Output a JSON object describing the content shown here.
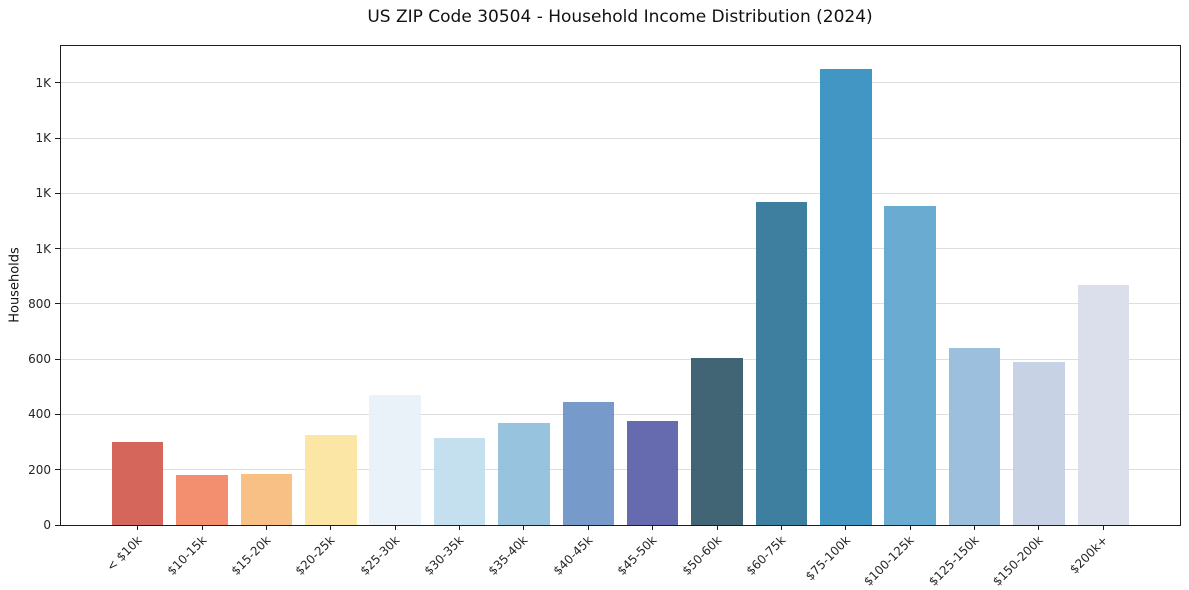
{
  "chart_data": {
    "type": "bar",
    "title": "US ZIP Code 30504 - Household Income Distribution (2024)",
    "ylabel": "Households",
    "xlabel": "",
    "categories": [
      "< $10k",
      "$10-15k",
      "$15-20k",
      "$20-25k",
      "$25-30k",
      "$30-35k",
      "$35-40k",
      "$40-45k",
      "$45-50k",
      "$50-60k",
      "$60-75k",
      "$75-100k",
      "$100-125k",
      "$125-150k",
      "$150-200k",
      "$200k+"
    ],
    "values": [
      300,
      180,
      185,
      325,
      470,
      315,
      370,
      445,
      375,
      605,
      1170,
      1650,
      1155,
      640,
      590,
      870
    ],
    "bar_colors": [
      "#d25a50",
      "#f28664",
      "#f9bb7d",
      "#fbe49f",
      "#e6f1f7",
      "#bfdeed",
      "#90bedd",
      "#6c92c6",
      "#5a5fa9",
      "#33596b",
      "#2f7598",
      "#348ec0",
      "#5fa6cd",
      "#94badb",
      "#c3cfe3",
      "#d8dbe9"
    ],
    "ylim": [
      0,
      1733
    ],
    "yticks": [
      {
        "value": 0,
        "label": "0"
      },
      {
        "value": 200,
        "label": "200"
      },
      {
        "value": 400,
        "label": "400"
      },
      {
        "value": 600,
        "label": "600"
      },
      {
        "value": 800,
        "label": "800"
      },
      {
        "value": 1000,
        "label": "1K"
      },
      {
        "value": 1200,
        "label": "1K"
      },
      {
        "value": 1400,
        "label": "1K"
      },
      {
        "value": 1600,
        "label": "1K"
      }
    ],
    "grid": "horizontal",
    "legend": "none"
  }
}
